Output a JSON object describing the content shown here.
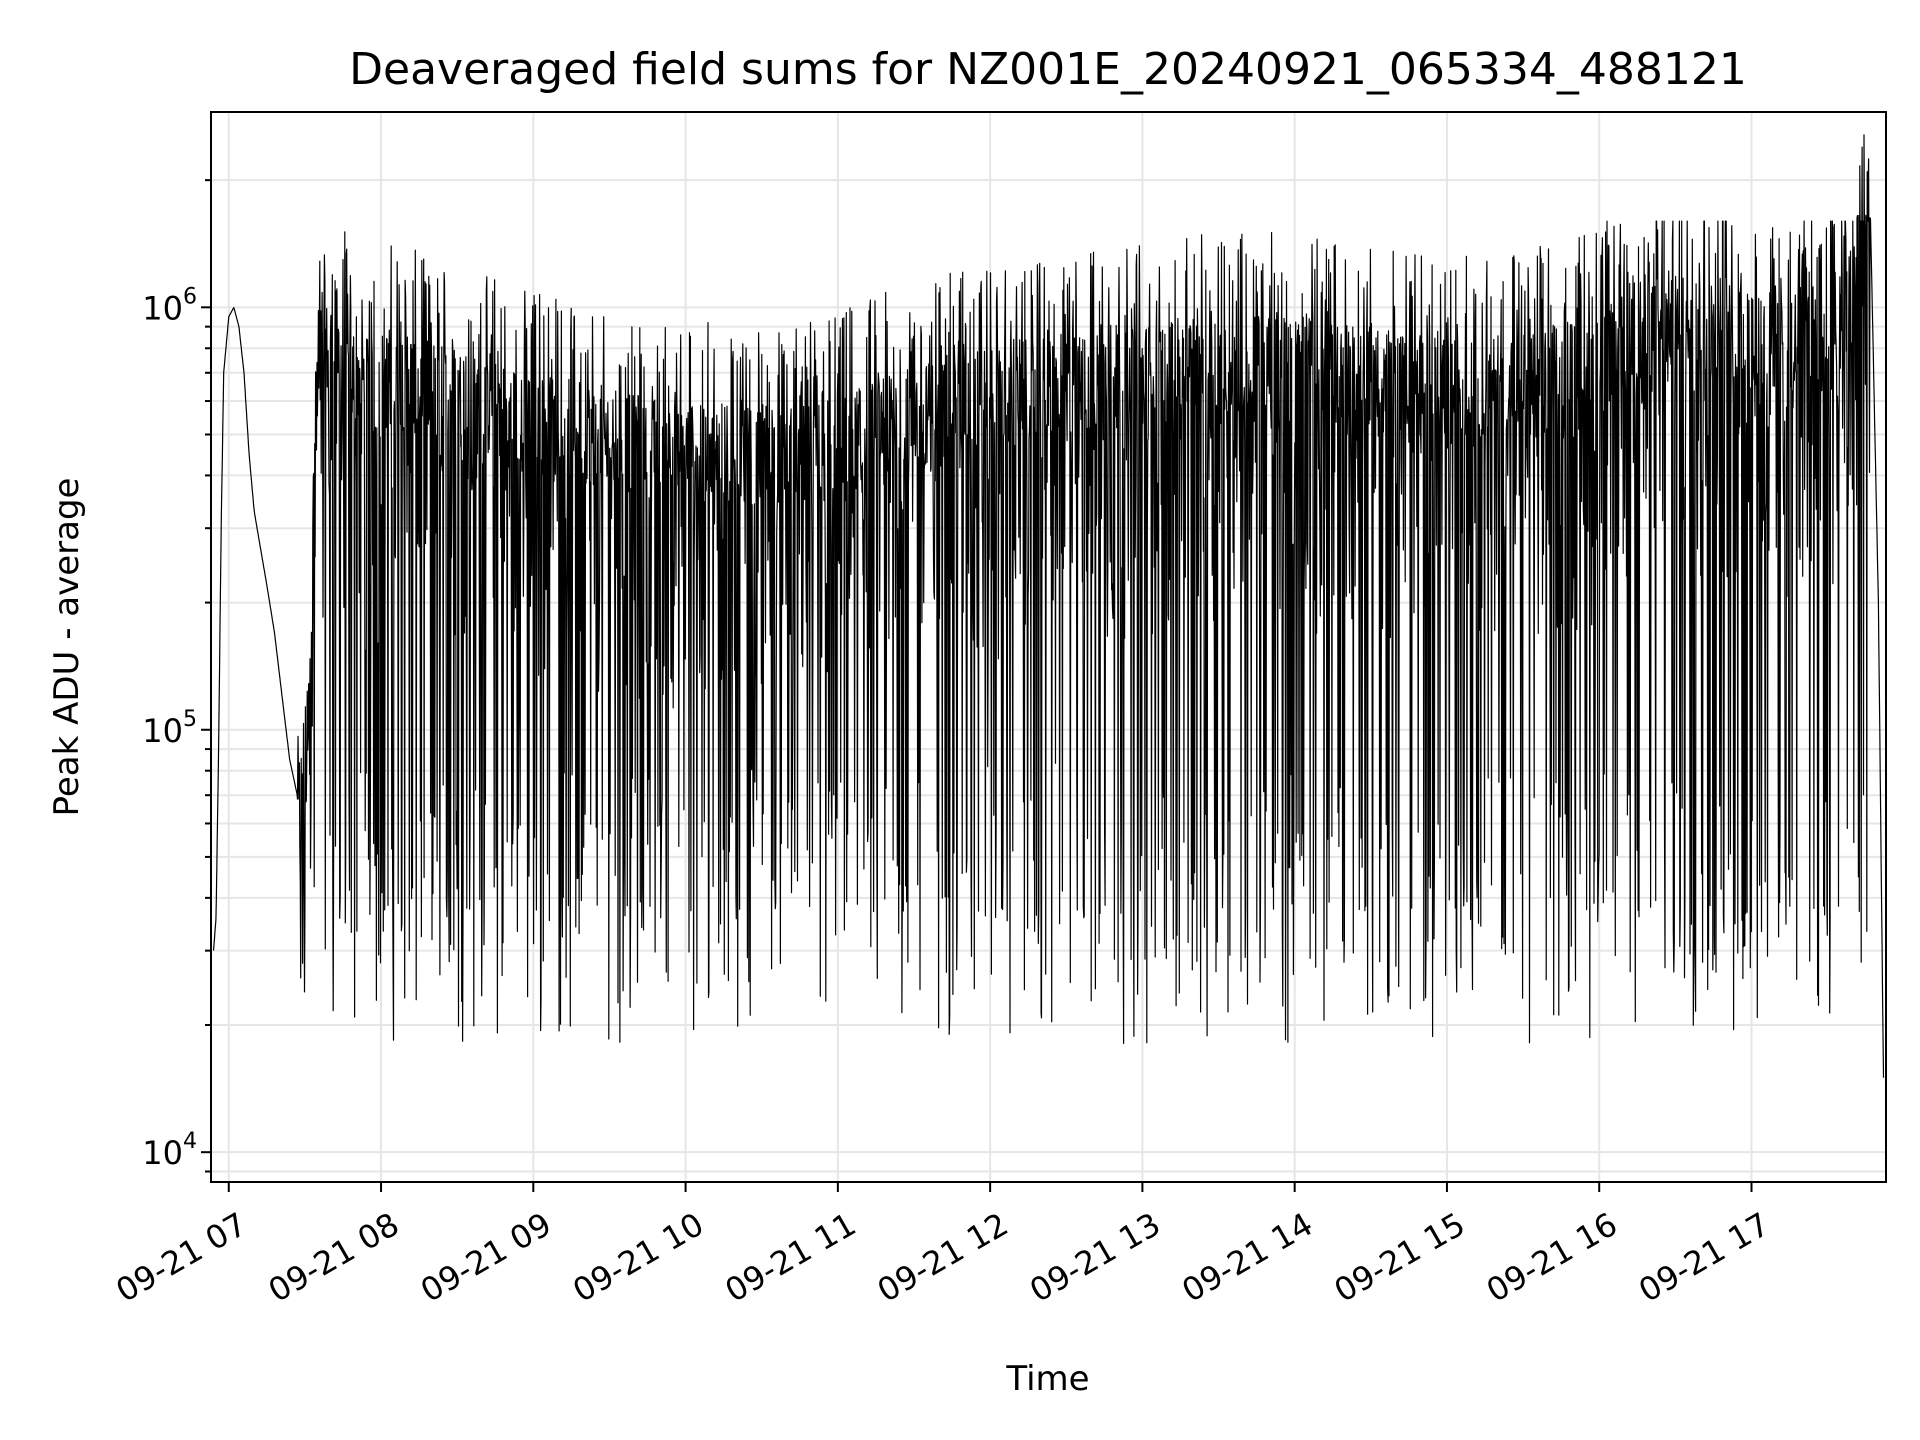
{
  "chart_data": {
    "type": "line",
    "title": "Deaveraged field sums for NZ001E_20240921_065334_488121",
    "xlabel": "Time",
    "ylabel": "Peak ADU - average",
    "yscale": "log",
    "ylim": [
      8500,
      2900000
    ],
    "xlim": [
      "2024-09-21 06:53",
      "2024-09-21 17:53"
    ],
    "grid": true,
    "line_color": "#000000",
    "x_tick_labels": [
      "09-21 07",
      "09-21 08",
      "09-21 09",
      "09-21 10",
      "09-21 11",
      "09-21 12",
      "09-21 13",
      "09-21 14",
      "09-21 15",
      "09-21 16",
      "09-21 17"
    ],
    "y_tick_labels": [
      {
        "base": "10",
        "exp": "4",
        "value": 10000
      },
      {
        "base": "10",
        "exp": "5",
        "value": 100000
      },
      {
        "base": "10",
        "exp": "6",
        "value": 1000000
      }
    ],
    "series": [
      {
        "x": [
          "2024-09-21 06:54",
          "2024-09-21 06:55",
          "2024-09-21 06:56",
          "2024-09-21 06:57",
          "2024-09-21 06:58",
          "2024-09-21 07:00",
          "2024-09-21 07:02",
          "2024-09-21 07:04",
          "2024-09-21 07:06",
          "2024-09-21 07:08",
          "2024-09-21 07:10",
          "2024-09-21 07:12",
          "2024-09-21 07:15",
          "2024-09-21 07:18",
          "2024-09-21 07:21",
          "2024-09-21 07:24",
          "2024-09-21 07:27",
          "2024-09-21 07:30",
          "2024-09-21 07:35",
          "2024-09-21 07:40",
          "2024-09-21 07:45",
          "2024-09-21 07:50",
          "2024-09-21 07:55",
          "2024-09-21 08:05",
          "2024-09-21 08:20",
          "2024-09-21 08:40",
          "2024-09-21 09:00",
          "2024-09-21 09:20",
          "2024-09-21 09:40",
          "2024-09-21 10:00",
          "2024-09-21 10:20",
          "2024-09-21 10:40",
          "2024-09-21 11:00",
          "2024-09-21 11:30",
          "2024-09-21 12:00",
          "2024-09-21 12:30",
          "2024-09-21 13:00",
          "2024-09-21 13:30",
          "2024-09-21 14:00",
          "2024-09-21 14:30",
          "2024-09-21 15:00",
          "2024-09-21 15:30",
          "2024-09-21 16:00",
          "2024-09-21 16:15",
          "2024-09-21 16:30",
          "2024-09-21 16:45",
          "2024-09-21 17:00",
          "2024-09-21 17:10",
          "2024-09-21 17:20",
          "2024-09-21 17:30",
          "2024-09-21 17:40",
          "2024-09-21 17:44",
          "2024-09-21 17:47",
          "2024-09-21 17:50",
          "2024-09-21 17:52"
        ],
        "y": [
          30000,
          36000,
          90000,
          300000,
          700000,
          950000,
          1000000,
          900000,
          700000,
          450000,
          330000,
          280000,
          220000,
          170000,
          120000,
          85000,
          70000,
          60000,
          700000,
          750000,
          700000,
          650000,
          600000,
          650000,
          600000,
          550000,
          500000,
          480000,
          450000,
          420000,
          420000,
          400000,
          450000,
          520000,
          580000,
          620000,
          650000,
          700000,
          680000,
          650000,
          600000,
          620000,
          700000,
          850000,
          880000,
          820000,
          800000,
          780000,
          800000,
          850000,
          1000000,
          2100000,
          1500000,
          200000,
          15000
        ]
      }
    ],
    "variation": {
      "high": [
        800000,
        1600000
      ],
      "low": [
        18000,
        90000
      ]
    }
  }
}
